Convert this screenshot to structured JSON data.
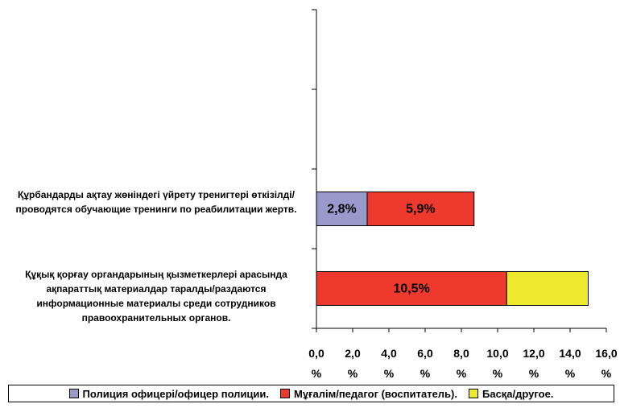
{
  "chart_data": {
    "type": "stacked-barh",
    "categories": [
      null,
      null,
      "Құрбандарды ақтау жөніндегі үйрету тренигтері өткізілді/проводятся обучающие тренинги по реабилитации жертв.",
      "Құқық қорғау органдарының қызметкерлері арасында ақпараттық материалдар таралды/раздаются информационные материалы среди сотрудников правоохранительных органов."
    ],
    "series": [
      {
        "name": "Полиция офицері/офицер полиции.",
        "color": "#9999cc",
        "values": [
          null,
          null,
          2.8,
          null
        ],
        "value_labels": [
          null,
          null,
          "2,8%",
          null
        ]
      },
      {
        "name": "Мұғалім/педагог (воспитатель).",
        "color": "#ee3a2e",
        "values": [
          null,
          null,
          5.9,
          10.5
        ],
        "value_labels": [
          null,
          null,
          "5,9%",
          "10,5%"
        ]
      },
      {
        "name": "Басқа/другое.",
        "color": "#eeea2e",
        "values": [
          null,
          null,
          null,
          4.5
        ],
        "value_labels": [
          null,
          null,
          null,
          null
        ]
      }
    ],
    "xlim": [
      0,
      16
    ],
    "xticks": [
      {
        "value": 0,
        "label": "0,0 %"
      },
      {
        "value": 2,
        "label": "2,0 %"
      },
      {
        "value": 4,
        "label": "4,0 %"
      },
      {
        "value": 6,
        "label": "6,0 %"
      },
      {
        "value": 8,
        "label": "8,0 %"
      },
      {
        "value": 10,
        "label": "10,0 %"
      },
      {
        "value": 12,
        "label": "12,0 %"
      },
      {
        "value": 14,
        "label": "14,0 %"
      },
      {
        "value": 16,
        "label": "16,0 %"
      }
    ],
    "legend": "bottom"
  }
}
